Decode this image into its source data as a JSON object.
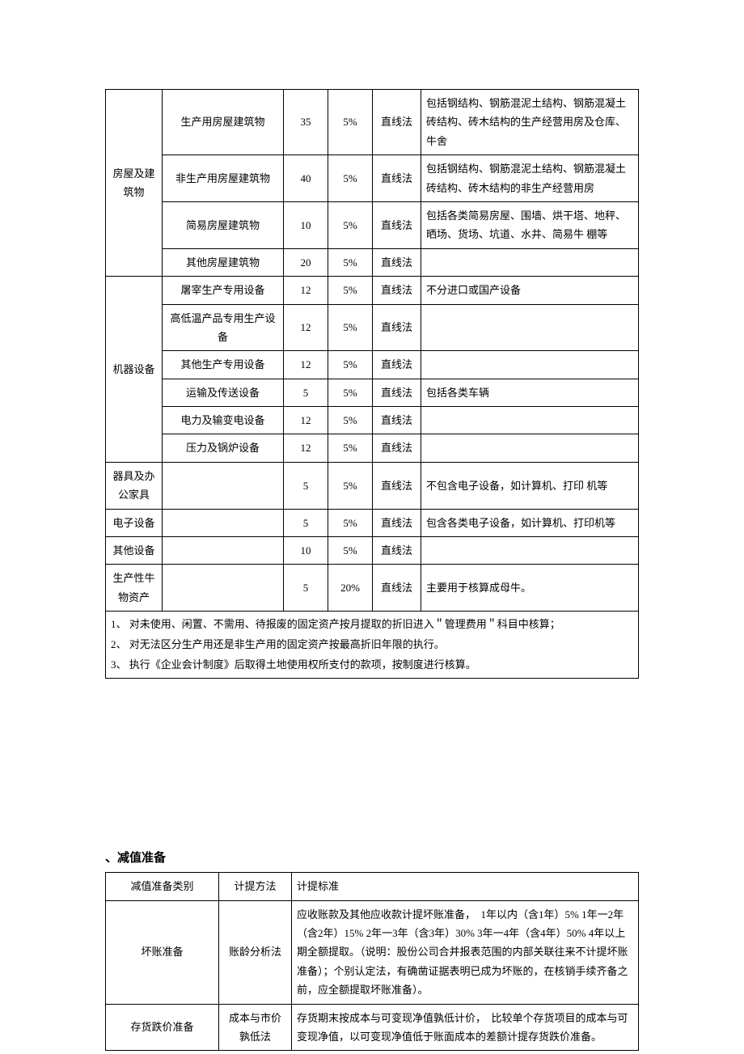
{
  "table1": {
    "rows": [
      {
        "cat": "房屋及建筑物",
        "catRowspan": 4,
        "sub": "生产用房屋建筑物",
        "years": "35",
        "rate": "5%",
        "method": "直线法",
        "remark": "包括钢结构、钢筋混泥土结构、钢筋混凝土砖结构、砖木结构的生产经营用房及仓库、牛舍"
      },
      {
        "sub": "非生产用房屋建筑物",
        "years": "40",
        "rate": "5%",
        "method": "直线法",
        "remark": "包括钢结构、钢筋混泥土结构、钢筋混凝土砖结构、砖木结构的非生产经营用房"
      },
      {
        "sub": "简易房屋建筑物",
        "years": "10",
        "rate": "5%",
        "method": "直线法",
        "remark": "包括各类简易房屋、围墙、烘干塔、地秤、\n晒场、货场、坑道、水井、简易牛 棚等"
      },
      {
        "sub": "其他房屋建筑物",
        "years": "20",
        "rate": "5%",
        "method": "直线法",
        "remark": ""
      },
      {
        "cat": "机器设备",
        "catRowspan": 6,
        "sub": "屠宰生产专用设备",
        "years": "12",
        "rate": "5%",
        "method": "直线法",
        "remark": "不分进口或国产设备"
      },
      {
        "sub": "高低温产品专用生产设备",
        "years": "12",
        "rate": "5%",
        "method": "直线法",
        "remark": ""
      },
      {
        "sub": "其他生产专用设备",
        "years": "12",
        "rate": "5%",
        "method": "直线法",
        "remark": ""
      },
      {
        "sub": "运输及传送设备",
        "years": "5",
        "rate": "5%",
        "method": "直线法",
        "remark": "包括各类车辆"
      },
      {
        "sub": "电力及输变电设备",
        "years": "12",
        "rate": "5%",
        "method": "直线法",
        "remark": ""
      },
      {
        "sub": "压力及锅炉设备",
        "years": "12",
        "rate": "5%",
        "method": "直线法",
        "remark": ""
      },
      {
        "cat": "器具及办公家具",
        "catRowspan": 1,
        "sub": "",
        "years": "5",
        "rate": "5%",
        "method": "直线法",
        "remark": "不包含电子设备，如计算机、打印 机等"
      },
      {
        "cat": "电子设备",
        "catRowspan": 1,
        "sub": "",
        "years": "5",
        "rate": "5%",
        "method": "直线法",
        "remark": "包含各类电子设备，如计算机、打印机等"
      },
      {
        "cat": "其他设备",
        "catRowspan": 1,
        "sub": "",
        "years": "10",
        "rate": "5%",
        "method": "直线法",
        "remark": ""
      },
      {
        "cat": "生产性牛物资产",
        "catRowspan": 1,
        "sub": "",
        "years": "5",
        "rate": "20%",
        "method": "直线法",
        "remark": "主要用于核算成母牛。"
      }
    ],
    "notes": [
      "1、 对未使用、闲置、不需用、待报废的固定资产按月提取的折旧进入＂管理费用＂科目中核算；",
      "2、 对无法区分生产用还是非生产用的固定资产按最高折旧年限的执行。",
      "3、 执行《企业会计制度》后取得土地使用权所支付的款项，按制度进行核算。"
    ]
  },
  "section2": {
    "heading": "、减值准备",
    "headers": [
      "减值准备类别",
      "计提方法",
      "计提标准"
    ],
    "rows": [
      {
        "type": "坏账准备",
        "method": "账龄分析法",
        "standard": "应收账款及其他应收款计提坏账准备，　1年以内（含1年）5% 1年一2年（含2年）15% 2年一3年（含3年）30% 3年一4年（含4年）50% 4年以上期全额提取。（说明：股份公司合并报表范围的内部关联往来不计提坏账准备）；个别认定法，有确凿证据表明已成为坏账的，在核销手续齐备之前，应全额提取坏账准备）。"
      },
      {
        "type": "存货跌价准备",
        "method": "成本与市价孰低法",
        "standard": "存货期末按成本与可变现净值孰低计价，　比较单个存货项目的成本与可变现净值，以可变现净值低于账面成本的差额计提存货跌价准备。"
      }
    ]
  }
}
